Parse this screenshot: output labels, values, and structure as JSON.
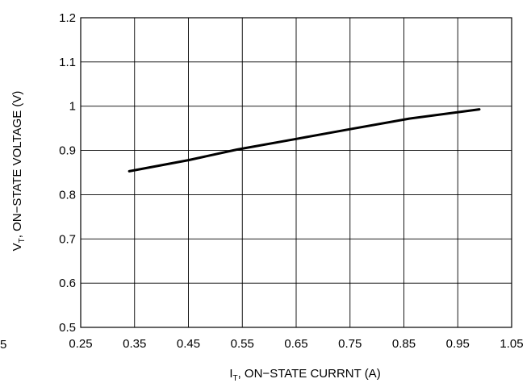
{
  "chart_data": {
    "type": "line",
    "x_axis": {
      "label_main": "I",
      "label_sub": "T",
      "label_rest": ", ON−STATE CURRNT (A)",
      "min": 0.25,
      "max": 1.05,
      "ticks": [
        0.25,
        0.35,
        0.45,
        0.55,
        0.65,
        0.75,
        0.85,
        0.95,
        1.05
      ],
      "tick_labels": [
        "0.25",
        "0.35",
        "0.45",
        "0.55",
        "0.65",
        "0.75",
        "0.85",
        "0.95",
        "1.05"
      ]
    },
    "y_axis": {
      "label_main": "V",
      "label_sub": "T",
      "label_rest": ", ON−STATE VOLTAGE (V)",
      "min": 0.5,
      "max": 1.2,
      "ticks": [
        0.5,
        0.6,
        0.7,
        0.8,
        0.9,
        1.0,
        1.1,
        1.2
      ],
      "tick_labels": [
        "0.5",
        "0.6",
        "0.7",
        "0.8",
        "0.9",
        "1",
        "1.1",
        "1.2"
      ]
    },
    "grid": true,
    "series": [
      {
        "color": "#000000",
        "x": [
          0.34,
          0.45,
          0.54,
          0.65,
          0.75,
          0.86,
          0.99
        ],
        "y": [
          0.853,
          0.878,
          0.902,
          0.926,
          0.948,
          0.972,
          0.993
        ]
      }
    ],
    "stray_text": "5"
  }
}
